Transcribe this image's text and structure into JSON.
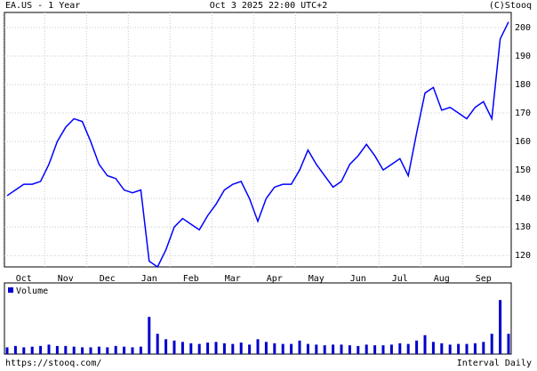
{
  "header": {
    "symbol": "EA.US - 1 Year",
    "timestamp": "Oct 3 2025 22:00 UTC+2",
    "copyright": "(C)Stooq"
  },
  "footer": {
    "url": "https://stooq.com/",
    "interval": "Interval Daily"
  },
  "chart_data": [
    {
      "type": "line",
      "categories": [
        null,
        null,
        "Oct",
        null,
        null,
        null,
        null,
        "Nov",
        null,
        null,
        null,
        null,
        "Dec",
        null,
        null,
        null,
        null,
        "Jan",
        null,
        null,
        null,
        null,
        "Feb",
        null,
        null,
        null,
        null,
        "Mar",
        null,
        null,
        null,
        null,
        "Apr",
        null,
        null,
        null,
        null,
        "May",
        null,
        null,
        null,
        null,
        "Jun",
        null,
        null,
        null,
        null,
        "Jul",
        null,
        null,
        null,
        null,
        "Aug",
        null,
        null,
        null,
        null,
        "Sep",
        null,
        null,
        null
      ],
      "series": [
        {
          "color": "#0000ff",
          "values": [
            141,
            143,
            145,
            145,
            146,
            152,
            160,
            165,
            168,
            167,
            160,
            152,
            148,
            147,
            143,
            142,
            143,
            118,
            116,
            122,
            130,
            133,
            131,
            129,
            134,
            138,
            143,
            145,
            146,
            140,
            132,
            140,
            144,
            145,
            145,
            150,
            157,
            152,
            148,
            144,
            146,
            152,
            155,
            159,
            155,
            150,
            152,
            154,
            148,
            163,
            177,
            179,
            171,
            172,
            170,
            168,
            172,
            174,
            168,
            196,
            202
          ]
        }
      ],
      "ylim": [
        116,
        205.3
      ],
      "yticks": [
        120,
        130,
        140,
        150,
        160,
        170,
        180,
        190,
        200
      ],
      "grid": true
    },
    {
      "type": "bar",
      "series": [
        {
          "name": "Volume",
          "color": "#0000cc",
          "values": [
            10,
            12,
            10,
            11,
            12,
            14,
            12,
            12,
            11,
            10,
            10,
            11,
            10,
            12,
            11,
            10,
            11,
            55,
            30,
            22,
            20,
            18,
            16,
            15,
            17,
            18,
            16,
            15,
            17,
            14,
            22,
            18,
            16,
            15,
            15,
            20,
            15,
            14,
            13,
            14,
            14,
            13,
            12,
            14,
            13,
            13,
            14,
            16,
            15,
            20,
            28,
            18,
            16,
            14,
            15,
            15,
            16,
            18,
            30,
            80,
            30
          ]
        }
      ],
      "ylim": [
        0,
        100
      ]
    }
  ]
}
